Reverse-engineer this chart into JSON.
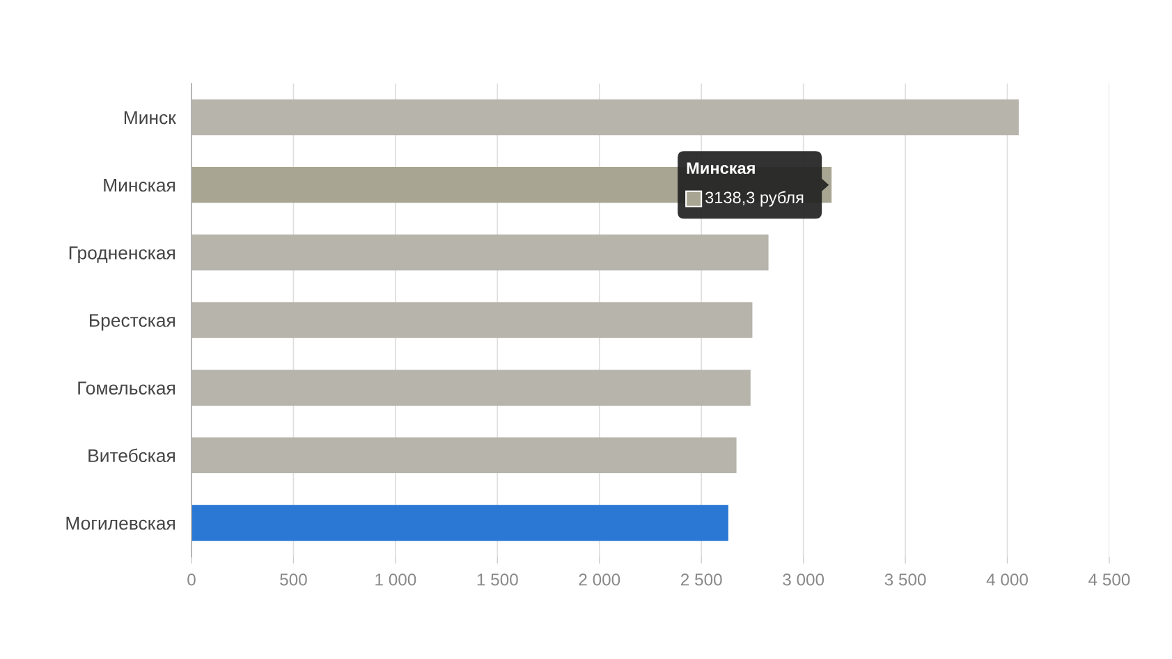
{
  "chart_data": {
    "type": "bar",
    "orientation": "horizontal",
    "categories": [
      "Минск",
      "Минская",
      "Гродненская",
      "Брестская",
      "Гомельская",
      "Витебская",
      "Могилевская"
    ],
    "values": [
      4056,
      3138.3,
      2829,
      2750,
      2741,
      2672,
      2632
    ],
    "colors": [
      "#b6b4ab",
      "#a8a592",
      "#b6b4ab",
      "#b6b4ab",
      "#b6b4ab",
      "#b6b4ab",
      "#2a77d4"
    ],
    "xlim": [
      0,
      4500
    ],
    "xticks": [
      0,
      500,
      {
        "value": 1000,
        "label": "1 000"
      },
      {
        "value": 1500,
        "label": "1 500"
      },
      {
        "value": 2000,
        "label": "2 000"
      },
      {
        "value": 2500,
        "label": "2 500"
      },
      {
        "value": 3000,
        "label": "3 000"
      },
      {
        "value": 3500,
        "label": "3 500"
      },
      {
        "value": 4000,
        "label": "4 000"
      },
      {
        "value": 4500,
        "label": "4 500"
      }
    ],
    "grid": "x",
    "legend": false,
    "annotations": [
      {
        "text": "Минская\n3138,3 рубля",
        "x": 3138.3,
        "y": "Минская"
      }
    ]
  }
}
